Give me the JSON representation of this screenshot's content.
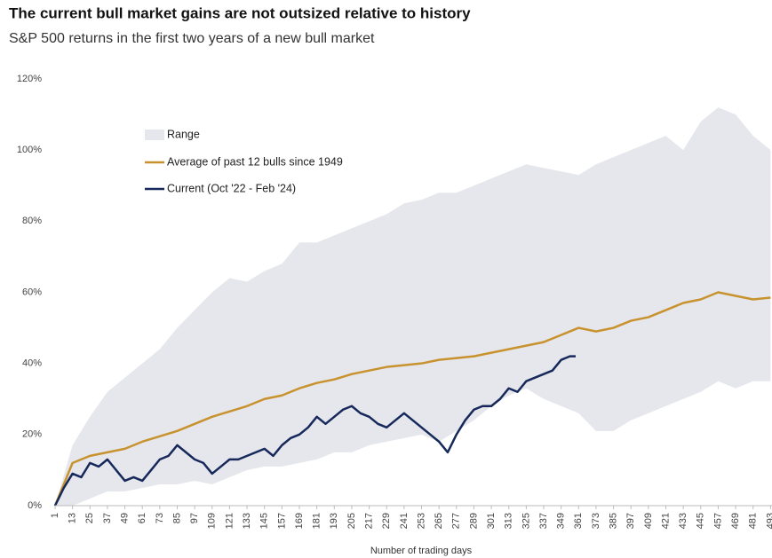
{
  "chart_data": {
    "type": "line",
    "title": "The current bull market gains are not outsized relative to history",
    "subtitle": "S&P 500 returns in the first two years of a new bull market",
    "xlabel": "Number of trading days",
    "xlim": [
      1,
      494
    ],
    "ylim": [
      0,
      120
    ],
    "xticks": [
      1,
      13,
      25,
      37,
      49,
      61,
      73,
      85,
      97,
      109,
      121,
      133,
      145,
      157,
      169,
      181,
      193,
      205,
      217,
      229,
      241,
      253,
      265,
      277,
      289,
      301,
      313,
      325,
      337,
      349,
      361,
      373,
      385,
      397,
      409,
      421,
      433,
      445,
      457,
      469,
      481,
      493
    ],
    "yticks": [
      {
        "value": 0,
        "label": "0%"
      },
      {
        "value": 20,
        "label": "20%"
      },
      {
        "value": 40,
        "label": "40%"
      },
      {
        "value": 60,
        "label": "60%"
      },
      {
        "value": 80,
        "label": "80%"
      },
      {
        "value": 100,
        "label": "100%"
      },
      {
        "value": 120,
        "label": "120%"
      }
    ],
    "series": [
      {
        "name": "Range",
        "color": "#e6e7ec",
        "type": "area",
        "x": [
          1,
          13,
          25,
          37,
          49,
          61,
          73,
          85,
          97,
          109,
          121,
          133,
          145,
          157,
          169,
          181,
          193,
          205,
          217,
          229,
          241,
          253,
          265,
          277,
          289,
          301,
          313,
          325,
          337,
          349,
          361,
          373,
          385,
          397,
          409,
          421,
          433,
          445,
          457,
          469,
          481,
          493
        ],
        "upper": [
          0,
          17,
          25,
          32,
          36,
          40,
          44,
          50,
          55,
          60,
          64,
          63,
          66,
          68,
          74,
          74,
          76,
          78,
          80,
          82,
          85,
          86,
          88,
          88,
          90,
          92,
          94,
          96,
          95,
          94,
          93,
          96,
          98,
          100,
          102,
          104,
          100,
          108,
          112,
          110,
          104,
          100
        ],
        "lower": [
          0,
          0,
          2,
          4,
          4,
          5,
          6,
          6,
          7,
          6,
          8,
          10,
          11,
          11,
          12,
          13,
          15,
          15,
          17,
          18,
          19,
          20,
          18,
          21,
          24,
          28,
          31,
          33,
          30,
          28,
          26,
          21,
          21,
          24,
          26,
          28,
          30,
          32,
          35,
          33,
          35,
          35
        ]
      },
      {
        "name": "Average of past 12 bulls since 1949",
        "color": "#c8922e",
        "x": [
          1,
          13,
          25,
          37,
          49,
          61,
          73,
          85,
          97,
          109,
          121,
          133,
          145,
          157,
          169,
          181,
          193,
          205,
          217,
          229,
          241,
          253,
          265,
          277,
          289,
          301,
          313,
          325,
          337,
          349,
          361,
          373,
          385,
          397,
          409,
          421,
          433,
          445,
          457,
          469,
          481,
          493
        ],
        "values": [
          0,
          12,
          14,
          15,
          16,
          18,
          19.5,
          21,
          23,
          25,
          26.5,
          28,
          30,
          31,
          33,
          34.5,
          35.5,
          37,
          38,
          39,
          39.5,
          40,
          41,
          41.5,
          42,
          43,
          44,
          45,
          46,
          48,
          50,
          49,
          50,
          52,
          53,
          55,
          57,
          58,
          60,
          59,
          58,
          58.5
        ]
      },
      {
        "name": "Current (Oct '22 - Feb '24)",
        "color": "#16295a",
        "x": [
          1,
          7,
          13,
          19,
          25,
          31,
          37,
          43,
          49,
          55,
          61,
          67,
          73,
          79,
          85,
          91,
          97,
          103,
          109,
          115,
          121,
          127,
          133,
          139,
          145,
          151,
          157,
          163,
          169,
          175,
          181,
          187,
          193,
          199,
          205,
          211,
          217,
          223,
          229,
          235,
          241,
          247,
          253,
          259,
          265,
          271,
          277,
          283,
          289,
          295,
          301,
          307,
          313,
          319,
          325,
          331,
          337,
          343,
          349,
          355,
          359
        ],
        "values": [
          0,
          5,
          9,
          8,
          12,
          11,
          13,
          10,
          7,
          8,
          7,
          10,
          13,
          14,
          17,
          15,
          13,
          12,
          9,
          11,
          13,
          13,
          14,
          15,
          16,
          14,
          17,
          19,
          20,
          22,
          25,
          23,
          25,
          27,
          28,
          26,
          25,
          23,
          22,
          24,
          26,
          24,
          22,
          20,
          18,
          15,
          20,
          24,
          27,
          28,
          28,
          30,
          33,
          32,
          35,
          36,
          37,
          38,
          41,
          42,
          42
        ]
      }
    ]
  }
}
